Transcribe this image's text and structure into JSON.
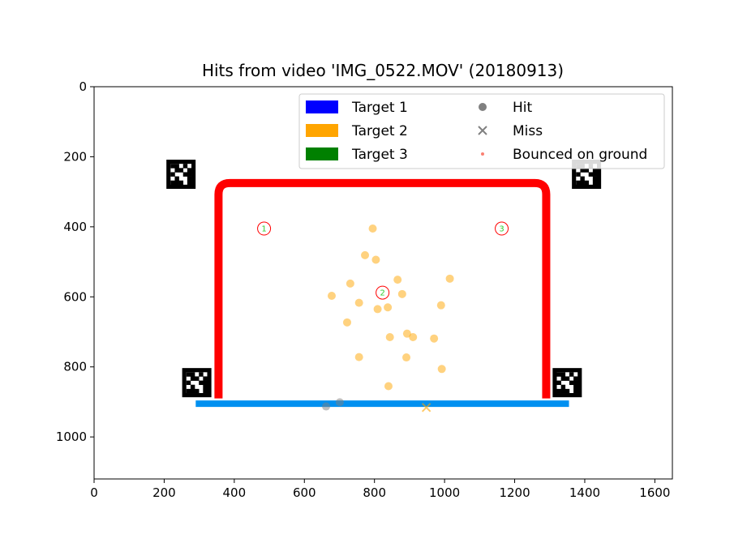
{
  "chart_data": {
    "type": "scatter",
    "title": "Hits from video 'IMG_0522.MOV' (20180913)",
    "xlabel": "",
    "ylabel": "",
    "xlim": [
      0,
      1650
    ],
    "ylim": [
      1120,
      0
    ],
    "y_inverted": true,
    "grid": false,
    "x_ticks": [
      0,
      200,
      400,
      600,
      800,
      1000,
      1200,
      1400,
      1600
    ],
    "y_ticks": [
      0,
      200,
      400,
      600,
      800,
      1000
    ],
    "legend": {
      "placement": "top-right",
      "entries": [
        {
          "label": "Target 1",
          "kind": "patch",
          "color": "#0000ff"
        },
        {
          "label": "Target 2",
          "kind": "patch",
          "color": "#ffa500"
        },
        {
          "label": "Target 3",
          "kind": "patch",
          "color": "#008000"
        },
        {
          "label": "Hit",
          "kind": "circle",
          "color": "#808080"
        },
        {
          "label": "Miss",
          "kind": "x",
          "color": "#808080"
        },
        {
          "label": "Bounced on ground",
          "kind": "small-dot",
          "color": "#fa8072"
        }
      ]
    },
    "goal_frame": {
      "color": "#ff0000",
      "left_post_x": 355,
      "right_post_x": 1290,
      "crossbar_y": 275,
      "bottom_y": 890
    },
    "ground_line": {
      "color": "#0090f0",
      "x_start": 290,
      "x_end": 1355,
      "y": 905
    },
    "fiducial_markers": [
      {
        "x": 248,
        "y": 250
      },
      {
        "x": 1405,
        "y": 250
      },
      {
        "x": 293,
        "y": 845
      },
      {
        "x": 1350,
        "y": 845
      }
    ],
    "target_markers": [
      {
        "label": "1",
        "x": 485,
        "y": 405
      },
      {
        "label": "2",
        "x": 823,
        "y": 588
      },
      {
        "label": "3",
        "x": 1163,
        "y": 405
      }
    ],
    "target_marker_style": {
      "ring_color": "#ff0000",
      "text_color": "#32cd32"
    },
    "series": [
      {
        "target": "Target 2",
        "kind": "hit",
        "color": "#ffa500",
        "points": [
          [
            795,
            405
          ],
          [
            773,
            481
          ],
          [
            804,
            494
          ],
          [
            866,
            551
          ],
          [
            1015,
            548
          ],
          [
            731,
            562
          ],
          [
            879,
            592
          ],
          [
            678,
            597
          ],
          [
            756,
            617
          ],
          [
            809,
            635
          ],
          [
            838,
            630
          ],
          [
            990,
            624
          ],
          [
            722,
            673
          ],
          [
            893,
            705
          ],
          [
            844,
            715
          ],
          [
            910,
            715
          ],
          [
            970,
            719
          ],
          [
            756,
            772
          ],
          [
            891,
            773
          ],
          [
            992,
            806
          ],
          [
            840,
            855
          ]
        ]
      },
      {
        "target": "Target 2",
        "kind": "hit",
        "color": "#808080",
        "points": [
          [
            662,
            913
          ],
          [
            701,
            901
          ]
        ]
      },
      {
        "target": "Target 2",
        "kind": "miss",
        "color": "#ffa500",
        "points": [
          [
            948,
            916
          ]
        ]
      }
    ]
  }
}
